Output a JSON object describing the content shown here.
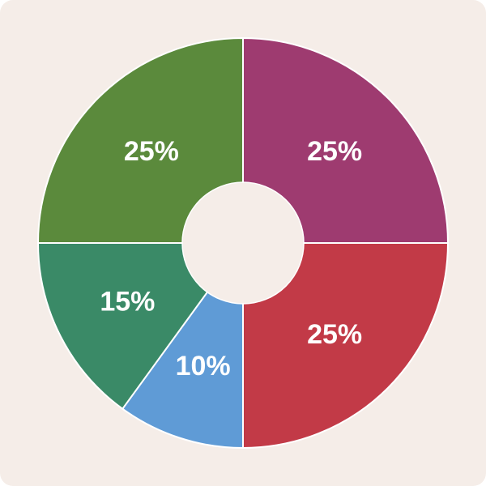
{
  "colors": {
    "background": "#f5ede8",
    "slice_border": "#ffffff"
  },
  "chart_data": {
    "type": "pie",
    "donut": true,
    "start": "top",
    "direction": "clockwise",
    "slices": [
      {
        "value": 25,
        "label": "25%",
        "color": "#9e3b70"
      },
      {
        "value": 25,
        "label": "25%",
        "color": "#c23a47"
      },
      {
        "value": 10,
        "label": "10%",
        "color": "#5f9bd6"
      },
      {
        "value": 15,
        "label": "15%",
        "color": "#3a8a67"
      },
      {
        "value": 25,
        "label": "25%",
        "color": "#5b8a3c"
      }
    ],
    "legend": "none"
  }
}
